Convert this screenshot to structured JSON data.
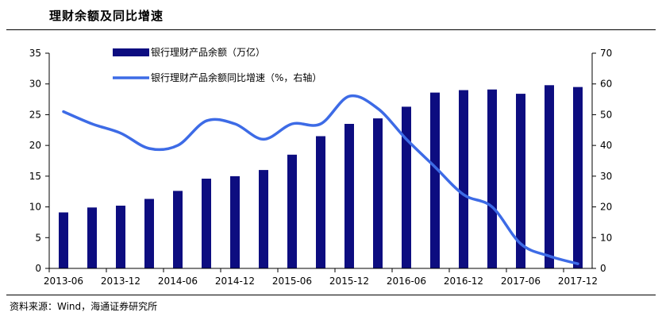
{
  "title": "理财余额及同比增速",
  "source": "资料来源：Wind，海通证券研究所",
  "colors": {
    "bar": "#0d0d80",
    "line": "#3d6be6",
    "axis": "#000000"
  },
  "chart_data": {
    "type": "bar",
    "title": "理财余额及同比增速",
    "x_tick_labels": [
      "2013-06",
      "2013-12",
      "2014-06",
      "2014-12",
      "2015-06",
      "2015-12",
      "2016-06",
      "2016-12",
      "2017-06",
      "2017-12"
    ],
    "categories": [
      "2013-06",
      "2013-09",
      "2013-12",
      "2014-03",
      "2014-06",
      "2014-09",
      "2014-12",
      "2015-03",
      "2015-06",
      "2015-09",
      "2015-12",
      "2016-03",
      "2016-06",
      "2016-09",
      "2016-12",
      "2017-03",
      "2017-06",
      "2017-09",
      "2017-12"
    ],
    "y_left": {
      "ylim": [
        0,
        35
      ],
      "ticks": [
        0,
        5,
        10,
        15,
        20,
        25,
        30,
        35
      ]
    },
    "y_right": {
      "ylim": [
        0,
        70
      ],
      "ticks": [
        0,
        10,
        20,
        30,
        40,
        50,
        60,
        70
      ]
    },
    "legend_position": "top-center",
    "grid": false,
    "series": [
      {
        "name": "银行理财产品余额（万亿）",
        "type": "bar",
        "axis": "left",
        "values": [
          9.1,
          9.9,
          10.2,
          11.3,
          12.6,
          14.6,
          15.0,
          16.0,
          18.5,
          21.5,
          23.5,
          24.4,
          26.3,
          28.6,
          29.0,
          29.1,
          28.4,
          29.8,
          29.5
        ]
      },
      {
        "name": "银行理财产品余额同比增速（%，右轴）",
        "type": "line",
        "axis": "right",
        "values": [
          51,
          47,
          44,
          39,
          40,
          48,
          47,
          42,
          47,
          47,
          56,
          52,
          42,
          33,
          24,
          20,
          8,
          4,
          1.5
        ]
      }
    ]
  }
}
